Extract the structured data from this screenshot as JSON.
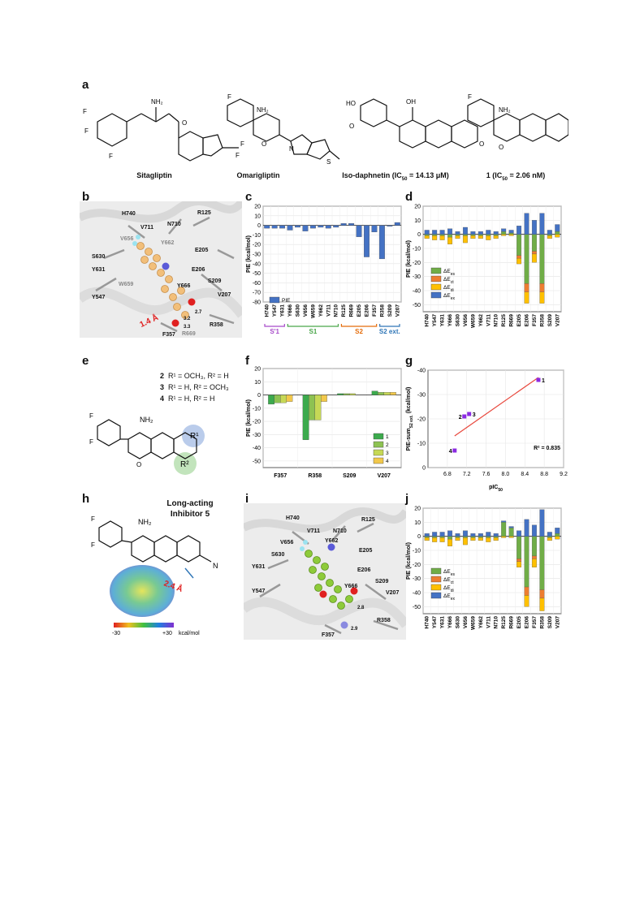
{
  "panels": {
    "a": "a",
    "b": "b",
    "c": "c",
    "d": "d",
    "e": "e",
    "f": "f",
    "g": "g",
    "h": "h",
    "i": "i",
    "j": "j"
  },
  "panel_a": {
    "names": [
      "Sitagliptin",
      "Omarigliptin"
    ],
    "iso_daphnetin": {
      "prefix": "Iso-daphnetin (IC",
      "sub": "50",
      "suffix": " = 14.13 μM)"
    },
    "compound1": {
      "prefix": "1 (IC",
      "sub": "50",
      "suffix": " = 2.06 nM)"
    }
  },
  "panel_b": {
    "residues": [
      "H740",
      "V711",
      "N710",
      "R125",
      "V656",
      "Y662",
      "S630",
      "E205",
      "Y631",
      "E206",
      "W659",
      "S209",
      "Y547",
      "Y666",
      "V207",
      "R669",
      "R358",
      "F357"
    ],
    "distances": [
      "2.7",
      "3.2",
      "3.3"
    ],
    "distance_callout": "1.4 Å"
  },
  "panel_e": {
    "lines": [
      {
        "num": "2",
        "text": "R¹ = OCH₃, R² = H"
      },
      {
        "num": "3",
        "text": "R¹ = H, R² = OCH₃"
      },
      {
        "num": "4",
        "text": "R¹ = H, R² = H"
      }
    ],
    "r1": "R¹",
    "r2": "R²",
    "nh2": "NH₂"
  },
  "panel_h": {
    "title_line1": "Long-acting",
    "title_line2": "Inhibitor 5",
    "distance": "2.4 Å",
    "scale_min": "-30",
    "scale_max": "+30",
    "scale_unit": "kcal/mol",
    "nh2": "NH₂",
    "n": "N"
  },
  "panel_i": {
    "residues": [
      "H740",
      "V711",
      "N710",
      "R125",
      "V656",
      "Y662",
      "E205",
      "S630",
      "E206",
      "Y631",
      "S209",
      "Y666",
      "Y547",
      "V207",
      "F357",
      "R358"
    ],
    "distances": [
      "2.8",
      "2.9"
    ]
  },
  "chart_data": [
    {
      "id": "c",
      "type": "bar",
      "ylabel": "PIE (kcal/mol)",
      "ylim": [
        -80,
        20
      ],
      "yticks": [
        20,
        10,
        0,
        -10,
        -20,
        -30,
        -40,
        -50,
        -60,
        -70,
        -80
      ],
      "categories": [
        "H740",
        "Y547",
        "Y631",
        "Y666",
        "S630",
        "V656",
        "W659",
        "Y662",
        "V711",
        "N710",
        "R125",
        "R669",
        "E205",
        "E206",
        "F357",
        "R358",
        "S209",
        "V207"
      ],
      "series": [
        {
          "name": "PIE",
          "color": "#4472c4",
          "values": [
            -3,
            -3,
            -3,
            -5,
            -2,
            -6,
            -3,
            -2,
            -3,
            -2,
            2,
            2,
            -12,
            -33,
            -7,
            -35,
            -1,
            3
          ]
        }
      ],
      "legend_position": "bottom-left",
      "groups": [
        {
          "name": "S'1",
          "color": "#a64ac9",
          "from": 0,
          "to": 2
        },
        {
          "name": "S1",
          "color": "#4aa64a",
          "from": 3,
          "to": 9
        },
        {
          "name": "S2",
          "color": "#e46c0a",
          "from": 10,
          "to": 14
        },
        {
          "name": "S2 ext.",
          "color": "#2e75b6",
          "from": 15,
          "to": 17
        }
      ]
    },
    {
      "id": "d",
      "type": "bar",
      "stacked": true,
      "ylabel": "PIE (kcal/mol)",
      "ylim": [
        -55,
        20
      ],
      "yticks": [
        20,
        10,
        0,
        -10,
        -20,
        -30,
        -40,
        -50
      ],
      "categories": [
        "H740",
        "Y547",
        "Y631",
        "Y666",
        "S630",
        "V656",
        "W659",
        "Y662",
        "V711",
        "N710",
        "R125",
        "R669",
        "E205",
        "E206",
        "F357",
        "R358",
        "S209",
        "V207"
      ],
      "series": [
        {
          "name": "ΔE_es",
          "color": "#70ad47",
          "values": [
            -1,
            -1,
            -1,
            -2,
            -1,
            -1,
            -1,
            -1,
            -1,
            -1,
            2,
            1,
            -15,
            -35,
            -12,
            -35,
            -1,
            2
          ]
        },
        {
          "name": "ΔE_ct",
          "color": "#ed7d31",
          "values": [
            0,
            0,
            0,
            0,
            0,
            0,
            0,
            0,
            0,
            0,
            0,
            0,
            -2,
            -6,
            -2,
            -6,
            0,
            0
          ]
        },
        {
          "name": "ΔE_di",
          "color": "#ffc000",
          "values": [
            -2,
            -3,
            -3,
            -5,
            -2,
            -5,
            -2,
            -2,
            -3,
            -2,
            -1,
            -1,
            -4,
            -8,
            -6,
            -8,
            -2,
            -2
          ]
        },
        {
          "name": "ΔE_ex",
          "color": "#4472c4",
          "values": [
            3,
            3,
            3,
            4,
            2,
            5,
            2,
            2,
            3,
            2,
            2,
            2,
            6,
            15,
            10,
            15,
            3,
            5
          ]
        }
      ],
      "legend_position": "bottom-left"
    },
    {
      "id": "f",
      "type": "bar",
      "ylabel": "PIE (kcal/mol)",
      "ylim": [
        -55,
        20
      ],
      "yticks": [
        20,
        10,
        0,
        -10,
        -20,
        -30,
        -40,
        -50
      ],
      "categories": [
        "F357",
        "R358",
        "S209",
        "V207"
      ],
      "series": [
        {
          "name": "1",
          "color": "#3caa4d",
          "values": [
            -7,
            -34,
            1,
            3
          ]
        },
        {
          "name": "2",
          "color": "#8dc252",
          "values": [
            -6,
            -19,
            1,
            2
          ]
        },
        {
          "name": "3",
          "color": "#c6d856",
          "values": [
            -6,
            -19,
            1,
            2
          ]
        },
        {
          "name": "4",
          "color": "#f2c84b",
          "values": [
            -5,
            -5,
            0,
            2
          ]
        }
      ],
      "legend_position": "bottom-right"
    },
    {
      "id": "g",
      "type": "scatter",
      "ylabel_main": "PIE-sum",
      "ylabel_sub": "S2 ext.",
      "ylabel_unit": " (kcal/mol)",
      "xlabel_main": "pIC",
      "xlabel_sub": "50",
      "xlim": [
        6.4,
        9.2
      ],
      "ylim": [
        0,
        -40
      ],
      "xticks": [
        6.8,
        7.2,
        7.6,
        8.0,
        8.4,
        8.8,
        9.2
      ],
      "yticks": [
        -40,
        -30,
        -20,
        -10,
        0
      ],
      "points": [
        {
          "label": "1",
          "x": 8.68,
          "y": -36
        },
        {
          "label": "2",
          "x": 7.15,
          "y": -21
        },
        {
          "label": "3",
          "x": 7.25,
          "y": -22
        },
        {
          "label": "4",
          "x": 6.95,
          "y": -7
        }
      ],
      "fit_line": {
        "x": [
          6.95,
          8.68
        ],
        "y": [
          -13,
          -37
        ]
      },
      "annotation": "R² = 0.835",
      "point_color": "#8b2be2",
      "line_color": "#e8473c"
    },
    {
      "id": "j",
      "type": "bar",
      "stacked": true,
      "ylabel": "PIE (kcal/mol)",
      "ylim": [
        -55,
        20
      ],
      "yticks": [
        20,
        10,
        0,
        -10,
        -20,
        -30,
        -40,
        -50
      ],
      "categories": [
        "H740",
        "Y547",
        "Y631",
        "Y666",
        "S630",
        "V656",
        "W659",
        "Y662",
        "V711",
        "N710",
        "R125",
        "R669",
        "E205",
        "E206",
        "F357",
        "R358",
        "S209",
        "V207"
      ],
      "series": [
        {
          "name": "ΔE_es",
          "color": "#70ad47",
          "values": [
            -1,
            -1,
            -1,
            -2,
            -1,
            -1,
            -1,
            -1,
            -1,
            -1,
            10,
            6,
            -16,
            -36,
            -14,
            -38,
            -1,
            2
          ]
        },
        {
          "name": "ΔE_ct",
          "color": "#ed7d31",
          "values": [
            0,
            0,
            0,
            0,
            0,
            0,
            0,
            0,
            0,
            0,
            0,
            0,
            -2,
            -6,
            -2,
            -6,
            0,
            0
          ]
        },
        {
          "name": "ΔE_di",
          "color": "#ffc000",
          "values": [
            -2,
            -3,
            -3,
            -5,
            -2,
            -5,
            -2,
            -2,
            -3,
            -2,
            -1,
            -1,
            -4,
            -8,
            -6,
            -9,
            -2,
            -2
          ]
        },
        {
          "name": "ΔE_ex",
          "color": "#4472c4",
          "values": [
            2,
            3,
            3,
            4,
            2,
            4,
            2,
            2,
            3,
            2,
            1,
            1,
            4,
            12,
            8,
            19,
            3,
            4
          ]
        }
      ],
      "legend_position": "bottom-left"
    }
  ]
}
